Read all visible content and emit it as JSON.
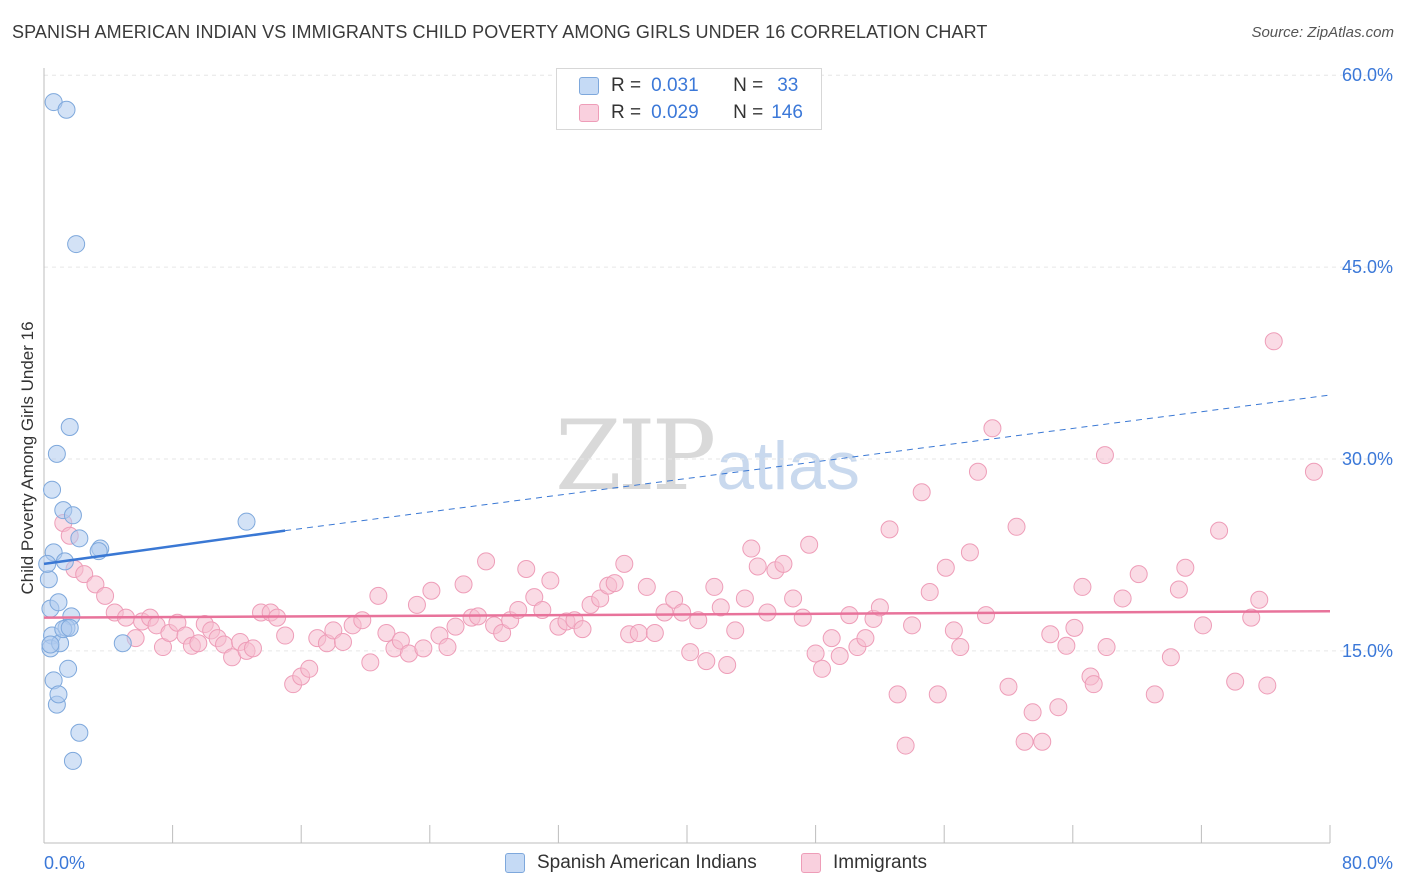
{
  "header": {
    "title": "SPANISH AMERICAN INDIAN VS IMMIGRANTS CHILD POVERTY AMONG GIRLS UNDER 16 CORRELATION CHART",
    "source": "Source: ZipAtlas.com"
  },
  "watermark": {
    "zip": "ZIP",
    "atlas": "atlas"
  },
  "legend_top": {
    "rows": [
      {
        "r_label": "R =",
        "r_value": "0.031",
        "n_label": "N =",
        "n_value": "33"
      },
      {
        "r_label": "R =",
        "r_value": "0.029",
        "n_label": "N =",
        "n_value": "146"
      }
    ]
  },
  "legend_bottom": {
    "items": [
      "Spanish American Indians",
      "Immigrants"
    ]
  },
  "colors": {
    "blue_fill": "#aecbef",
    "blue_stroke": "#7ea8dc",
    "blue_line": "#3a78d4",
    "pink_fill": "#f6bdd0",
    "pink_stroke": "#ee9db8",
    "pink_line": "#e8739b",
    "tick_label": "#3b78d8",
    "grid": "#e6e6e6"
  },
  "chart_data": {
    "type": "scatter",
    "title": "SPANISH AMERICAN INDIAN VS IMMIGRANTS CHILD POVERTY AMONG GIRLS UNDER 16 CORRELATION CHART",
    "xlabel": "",
    "ylabel": "Child Poverty Among Girls Under 16",
    "xlim": [
      0,
      80
    ],
    "ylim": [
      0,
      62
    ],
    "x_tick_labels": [
      "0.0%",
      "80.0%"
    ],
    "y_ticks": [
      15,
      30,
      45,
      60
    ],
    "y_tick_labels": [
      "15.0%",
      "30.0%",
      "45.0%",
      "60.0%"
    ],
    "grid": "horizontal dashed",
    "legend_position": "top-center",
    "series": [
      {
        "name": "Spanish American Indians",
        "R": 0.031,
        "N": 33,
        "trend": {
          "x": [
            0,
            15
          ],
          "y": [
            21.8,
            24.4
          ],
          "dashed_extension": [
            15,
            80,
            35.0
          ]
        },
        "points": [
          [
            0.3,
            20.6
          ],
          [
            0.4,
            18.3
          ],
          [
            0.5,
            16.2
          ],
          [
            0.4,
            15.2
          ],
          [
            0.6,
            12.7
          ],
          [
            0.8,
            10.8
          ],
          [
            0.9,
            11.6
          ],
          [
            1.0,
            15.6
          ],
          [
            0.6,
            22.7
          ],
          [
            0.5,
            27.6
          ],
          [
            0.8,
            30.4
          ],
          [
            1.3,
            22.0
          ],
          [
            1.2,
            26.0
          ],
          [
            1.6,
            32.5
          ],
          [
            1.8,
            25.6
          ],
          [
            2.2,
            23.8
          ],
          [
            2.0,
            46.8
          ],
          [
            0.6,
            57.9
          ],
          [
            1.4,
            57.3
          ],
          [
            1.7,
            17.7
          ],
          [
            1.4,
            16.8
          ],
          [
            1.5,
            13.6
          ],
          [
            1.8,
            6.4
          ],
          [
            2.2,
            8.6
          ],
          [
            3.5,
            23.0
          ],
          [
            3.4,
            22.8
          ],
          [
            4.9,
            15.6
          ],
          [
            12.6,
            25.1
          ],
          [
            1.2,
            16.7
          ],
          [
            0.9,
            18.8
          ],
          [
            0.2,
            21.8
          ],
          [
            1.6,
            16.8
          ],
          [
            0.4,
            15.5
          ]
        ]
      },
      {
        "name": "Immigrants",
        "R": 0.029,
        "N": 146,
        "trend": {
          "x": [
            0,
            80
          ],
          "y": [
            17.6,
            18.1
          ]
        },
        "points": [
          [
            1.2,
            25.0
          ],
          [
            1.6,
            24.0
          ],
          [
            1.9,
            21.4
          ],
          [
            2.5,
            21.0
          ],
          [
            3.2,
            20.2
          ],
          [
            3.8,
            19.3
          ],
          [
            4.4,
            18.0
          ],
          [
            5.1,
            17.6
          ],
          [
            5.7,
            16.0
          ],
          [
            6.1,
            17.3
          ],
          [
            6.6,
            17.6
          ],
          [
            7.0,
            17.0
          ],
          [
            7.4,
            15.3
          ],
          [
            7.8,
            16.4
          ],
          [
            8.3,
            17.2
          ],
          [
            8.8,
            16.2
          ],
          [
            9.2,
            15.4
          ],
          [
            9.6,
            15.6
          ],
          [
            10.0,
            17.1
          ],
          [
            10.4,
            16.6
          ],
          [
            10.8,
            16.0
          ],
          [
            11.2,
            15.5
          ],
          [
            11.7,
            14.5
          ],
          [
            12.2,
            15.7
          ],
          [
            12.6,
            15.0
          ],
          [
            13.0,
            15.2
          ],
          [
            13.5,
            18.0
          ],
          [
            14.1,
            18.0
          ],
          [
            14.5,
            17.6
          ],
          [
            15.0,
            16.2
          ],
          [
            15.5,
            12.4
          ],
          [
            16.0,
            13.0
          ],
          [
            16.5,
            13.6
          ],
          [
            17.0,
            16.0
          ],
          [
            17.6,
            15.6
          ],
          [
            18.0,
            16.6
          ],
          [
            18.6,
            15.7
          ],
          [
            19.2,
            17.0
          ],
          [
            19.8,
            17.4
          ],
          [
            20.3,
            14.1
          ],
          [
            20.8,
            19.3
          ],
          [
            21.3,
            16.4
          ],
          [
            21.8,
            15.2
          ],
          [
            22.2,
            15.8
          ],
          [
            22.7,
            14.8
          ],
          [
            23.2,
            18.6
          ],
          [
            23.6,
            15.2
          ],
          [
            24.1,
            19.7
          ],
          [
            24.6,
            16.2
          ],
          [
            25.1,
            15.3
          ],
          [
            25.6,
            16.9
          ],
          [
            26.1,
            20.2
          ],
          [
            26.6,
            17.6
          ],
          [
            27.0,
            17.7
          ],
          [
            27.5,
            22.0
          ],
          [
            28.0,
            17.0
          ],
          [
            28.5,
            16.4
          ],
          [
            29.0,
            17.4
          ],
          [
            29.5,
            18.2
          ],
          [
            30.0,
            21.4
          ],
          [
            30.5,
            19.2
          ],
          [
            31.0,
            18.2
          ],
          [
            31.5,
            20.5
          ],
          [
            32.0,
            16.9
          ],
          [
            32.5,
            17.3
          ],
          [
            33.0,
            17.4
          ],
          [
            33.5,
            16.7
          ],
          [
            34.0,
            18.6
          ],
          [
            34.6,
            19.1
          ],
          [
            35.1,
            20.1
          ],
          [
            35.5,
            20.3
          ],
          [
            36.1,
            21.8
          ],
          [
            36.4,
            16.3
          ],
          [
            37.0,
            16.4
          ],
          [
            37.5,
            20.0
          ],
          [
            38.0,
            16.4
          ],
          [
            38.6,
            18.0
          ],
          [
            39.2,
            19.0
          ],
          [
            39.7,
            18.0
          ],
          [
            40.2,
            14.9
          ],
          [
            40.7,
            17.4
          ],
          [
            41.2,
            14.2
          ],
          [
            41.7,
            20.0
          ],
          [
            42.1,
            18.4
          ],
          [
            42.5,
            13.9
          ],
          [
            43.0,
            16.6
          ],
          [
            43.6,
            19.1
          ],
          [
            44.0,
            23.0
          ],
          [
            44.4,
            21.6
          ],
          [
            45.0,
            18.0
          ],
          [
            45.5,
            21.3
          ],
          [
            46.0,
            21.8
          ],
          [
            46.6,
            19.1
          ],
          [
            47.2,
            17.6
          ],
          [
            47.6,
            23.3
          ],
          [
            48.0,
            14.8
          ],
          [
            48.4,
            13.6
          ],
          [
            49.0,
            16.0
          ],
          [
            49.5,
            14.6
          ],
          [
            50.1,
            17.8
          ],
          [
            50.6,
            15.3
          ],
          [
            51.1,
            16.0
          ],
          [
            51.6,
            17.5
          ],
          [
            52.0,
            18.4
          ],
          [
            52.6,
            24.5
          ],
          [
            53.1,
            11.6
          ],
          [
            53.6,
            7.6
          ],
          [
            54.0,
            17.0
          ],
          [
            54.6,
            27.4
          ],
          [
            55.1,
            19.6
          ],
          [
            55.6,
            11.6
          ],
          [
            56.1,
            21.5
          ],
          [
            56.6,
            16.6
          ],
          [
            57.0,
            15.3
          ],
          [
            57.6,
            22.7
          ],
          [
            58.1,
            29.0
          ],
          [
            58.6,
            17.8
          ],
          [
            59.0,
            32.4
          ],
          [
            60.0,
            12.2
          ],
          [
            60.5,
            24.7
          ],
          [
            61.0,
            7.9
          ],
          [
            61.5,
            10.2
          ],
          [
            62.1,
            7.9
          ],
          [
            62.6,
            16.3
          ],
          [
            63.1,
            10.6
          ],
          [
            63.6,
            15.4
          ],
          [
            64.1,
            16.8
          ],
          [
            64.6,
            20.0
          ],
          [
            65.1,
            13.0
          ],
          [
            65.3,
            12.4
          ],
          [
            66.1,
            15.3
          ],
          [
            67.1,
            19.1
          ],
          [
            68.1,
            21.0
          ],
          [
            69.1,
            11.6
          ],
          [
            70.1,
            14.5
          ],
          [
            70.6,
            19.8
          ],
          [
            71.0,
            21.5
          ],
          [
            72.1,
            17.0
          ],
          [
            73.1,
            24.4
          ],
          [
            74.1,
            12.6
          ],
          [
            75.1,
            17.6
          ],
          [
            75.6,
            19.0
          ],
          [
            76.1,
            12.3
          ],
          [
            79.0,
            29.0
          ],
          [
            76.5,
            39.2
          ],
          [
            66.0,
            30.3
          ]
        ]
      }
    ]
  }
}
